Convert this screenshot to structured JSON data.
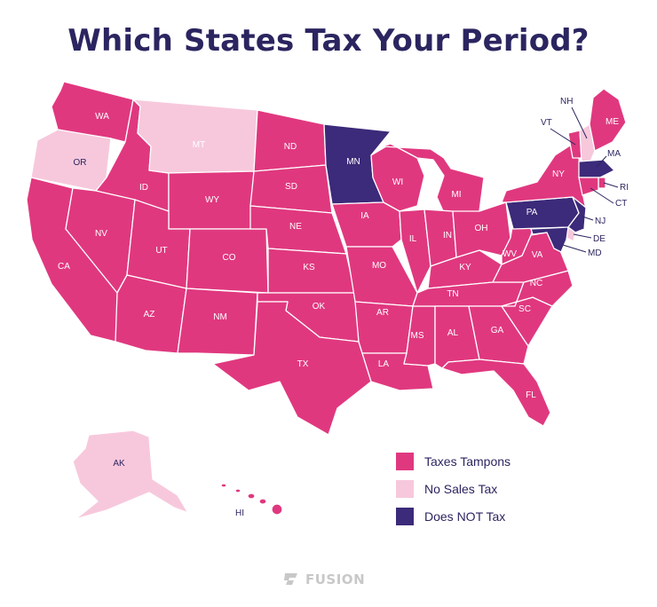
{
  "title": "Which States Tax Your Period?",
  "colors": {
    "taxes": "#e0387f",
    "no_tax": "#f7c8dc",
    "exempt": "#3c2a7a",
    "text": "#2b2560"
  },
  "states": {
    "WA": "taxes",
    "OR": "no_tax",
    "CA": "taxes",
    "ID": "taxes",
    "NV": "taxes",
    "MT": "no_tax",
    "WY": "taxes",
    "UT": "taxes",
    "AZ": "taxes",
    "CO": "taxes",
    "NM": "taxes",
    "ND": "taxes",
    "SD": "taxes",
    "NE": "taxes",
    "KS": "taxes",
    "OK": "taxes",
    "TX": "taxes",
    "MN": "exempt",
    "IA": "taxes",
    "MO": "taxes",
    "AR": "taxes",
    "LA": "taxes",
    "WI": "taxes",
    "IL": "taxes",
    "MS": "taxes",
    "MI": "taxes",
    "IN": "taxes",
    "KY": "taxes",
    "TN": "taxes",
    "AL": "taxes",
    "OH": "taxes",
    "GA": "taxes",
    "FL": "taxes",
    "SC": "taxes",
    "NC": "taxes",
    "VA": "taxes",
    "WV": "taxes",
    "PA": "exempt",
    "NY": "taxes",
    "VT": "taxes",
    "NH": "no_tax",
    "ME": "taxes",
    "MA": "exempt",
    "RI": "taxes",
    "CT": "taxes",
    "NJ": "exempt",
    "DE": "no_tax",
    "MD": "exempt",
    "AK": "no_tax",
    "HI": "taxes"
  },
  "legend": [
    {
      "label": "Taxes Tampons",
      "key": "taxes"
    },
    {
      "label": "No Sales Tax",
      "key": "no_tax"
    },
    {
      "label": "Does NOT Tax",
      "key": "exempt"
    }
  ],
  "brand": "FUSION"
}
